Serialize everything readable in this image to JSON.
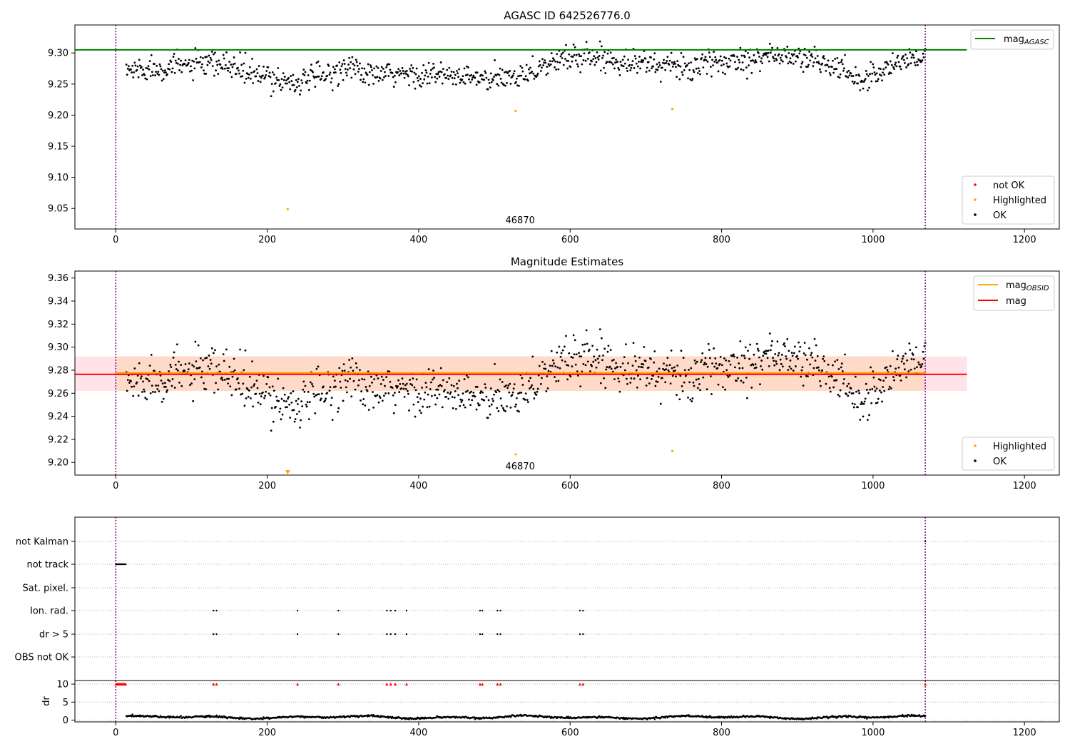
{
  "colors": {
    "ok": "#000000",
    "not_ok": "#ff0000",
    "highlighted": "#ffa500",
    "mag_agasc_line": "#008000",
    "mag_obsid_line": "#ffa500",
    "mag_line": "#ff0000",
    "mag_band": "#ffc0cb",
    "mag_obsid_band": "#ffd7bf",
    "obs_boundary": "#800080",
    "grid": "#b0b0b0"
  },
  "chart_data": [
    {
      "id": "top",
      "type": "scatter",
      "title": "AGASC ID 642526776.0",
      "xlim": [
        -54,
        1246
      ],
      "ylim": [
        9.017,
        9.345
      ],
      "xticks": [
        0,
        200,
        400,
        600,
        800,
        1000,
        1200
      ],
      "yticks": [
        9.05,
        9.1,
        9.15,
        9.2,
        9.25,
        9.3
      ],
      "ytick_labels": [
        "9.05",
        "9.10",
        "9.15",
        "9.20",
        "9.25",
        "9.30"
      ],
      "hlines": [
        {
          "name_main": "mag",
          "name_sub": "AGASC",
          "y": 9.305,
          "x_end": 1124,
          "color_key": "mag_agasc_line"
        }
      ],
      "vlines": [
        0,
        1069
      ],
      "annotations": [
        {
          "text": "46870",
          "x": 534,
          "y": 9.032
        }
      ],
      "highlighted": [
        [
          227,
          9.049
        ],
        [
          528,
          9.207
        ],
        [
          735,
          9.21
        ]
      ],
      "legend_upper": [
        {
          "label_main": "mag",
          "label_sub": "AGASC",
          "kind": "line",
          "color_key": "mag_agasc_line"
        }
      ],
      "legend_lower": [
        {
          "label": "not OK",
          "kind": "marker",
          "color_key": "not_ok"
        },
        {
          "label": "Highlighted",
          "kind": "marker",
          "color_key": "highlighted"
        },
        {
          "label": "OK",
          "kind": "marker",
          "color_key": "ok"
        }
      ],
      "ok_series_trend": [
        [
          14,
          9.272
        ],
        [
          100,
          9.281
        ],
        [
          150,
          9.28
        ],
        [
          180,
          9.265
        ],
        [
          240,
          9.253
        ],
        [
          290,
          9.268
        ],
        [
          305,
          9.283
        ],
        [
          330,
          9.264
        ],
        [
          400,
          9.266
        ],
        [
          470,
          9.26
        ],
        [
          500,
          9.255
        ],
        [
          550,
          9.272
        ],
        [
          590,
          9.29
        ],
        [
          620,
          9.296
        ],
        [
          700,
          9.283
        ],
        [
          760,
          9.276
        ],
        [
          800,
          9.285
        ],
        [
          860,
          9.297
        ],
        [
          920,
          9.29
        ],
        [
          960,
          9.272
        ],
        [
          985,
          9.256
        ],
        [
          1000,
          9.265
        ],
        [
          1040,
          9.288
        ],
        [
          1069,
          9.295
        ]
      ],
      "ok_scatter_spread": 0.01,
      "ok_count": 1055
    },
    {
      "id": "mid",
      "type": "scatter",
      "title": "Magnitude Estimates",
      "xlim": [
        -54,
        1246
      ],
      "ylim": [
        9.189,
        9.366
      ],
      "xticks": [
        0,
        200,
        400,
        600,
        800,
        1000,
        1200
      ],
      "yticks": [
        9.2,
        9.22,
        9.24,
        9.26,
        9.28,
        9.3,
        9.32,
        9.34,
        9.36
      ],
      "ytick_labels": [
        "9.20",
        "9.22",
        "9.24",
        "9.26",
        "9.28",
        "9.30",
        "9.32",
        "9.34",
        "9.36"
      ],
      "mag": {
        "y": 9.277,
        "band": [
          9.262,
          9.292
        ],
        "x_end": 1124
      },
      "mag_obsid": {
        "y": 9.277,
        "band": [
          9.262,
          9.292
        ],
        "x_range": [
          0,
          1069
        ]
      },
      "vlines": [
        0,
        1069
      ],
      "annotations": [
        {
          "text": "46870",
          "x": 534,
          "y": 9.197
        }
      ],
      "highlighted": [
        [
          528,
          9.207
        ],
        [
          735,
          9.21
        ]
      ],
      "off_axis_marker": {
        "x": 227,
        "marker": "triangle-down"
      },
      "legend_upper": [
        {
          "label_main": "mag",
          "label_sub": "OBSID",
          "kind": "line",
          "color_key": "mag_obsid_line"
        },
        {
          "label_main": "mag",
          "label_sub": "",
          "kind": "line",
          "color_key": "mag_line"
        }
      ],
      "legend_lower": [
        {
          "label": "Highlighted",
          "kind": "marker",
          "color_key": "highlighted"
        },
        {
          "label": "OK",
          "kind": "marker",
          "color_key": "ok"
        }
      ]
    },
    {
      "id": "flags",
      "type": "scatter",
      "xlim": [
        -54,
        1246
      ],
      "xticks": [
        0,
        200,
        400,
        600,
        800,
        1000,
        1200
      ],
      "categories": [
        "not Kalman",
        "not track",
        "Sat. pixel.",
        "Ion. rad.",
        "dr > 5",
        "OBS not OK"
      ],
      "vlines": [
        0,
        1069
      ],
      "not_track_x": [
        0,
        1,
        2,
        3,
        4,
        5,
        6,
        7,
        8,
        9,
        10,
        11,
        12,
        13
      ],
      "ion_rad_x": [
        129,
        133,
        240,
        294,
        358,
        363,
        369,
        384,
        481,
        484,
        504,
        508,
        613,
        617
      ],
      "dr5_x": [
        129,
        133,
        240,
        294,
        358,
        363,
        369,
        384,
        481,
        484,
        504,
        508,
        613,
        617
      ],
      "not_kalman_x": [
        1069
      ]
    },
    {
      "id": "dr",
      "type": "scatter",
      "xlim": [
        -54,
        1246
      ],
      "ylim": [
        -0.5,
        11
      ],
      "ylabel": "dr",
      "yticks": [
        0,
        5,
        10
      ],
      "ytick_labels": [
        "0",
        "5",
        "10"
      ],
      "xticks": [
        0,
        200,
        400,
        600,
        800,
        1000,
        1200
      ],
      "xtick_labels": [
        "0",
        "200",
        "400",
        "600",
        "800",
        "1000",
        "1200"
      ],
      "vlines": [
        0,
        1069
      ],
      "clip_markers_x": [
        0,
        1,
        2,
        3,
        4,
        5,
        6,
        7,
        8,
        9,
        10,
        11,
        12,
        13,
        129,
        133,
        240,
        294,
        358,
        363,
        369,
        384,
        481,
        484,
        504,
        508,
        613,
        617,
        1069
      ],
      "clip_value": 10,
      "dr_range": [
        0,
        1.8
      ],
      "dr_count": 1055
    }
  ]
}
